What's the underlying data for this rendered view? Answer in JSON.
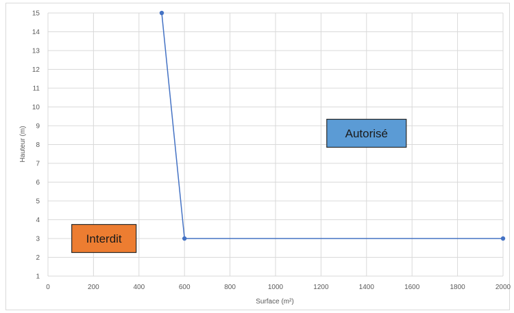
{
  "chart_data": {
    "type": "line",
    "xlabel": "Surface (m²)",
    "ylabel": "Hauteur (m)",
    "xlim": [
      0,
      2000
    ],
    "ylim": [
      1,
      15
    ],
    "x_ticks": [
      "0",
      "200",
      "400",
      "600",
      "800",
      "1000",
      "1200",
      "1400",
      "1600",
      "1800",
      "2000"
    ],
    "y_ticks": [
      "1",
      "2",
      "3",
      "4",
      "5",
      "6",
      "7",
      "8",
      "9",
      "10",
      "11",
      "12",
      "13",
      "14",
      "15"
    ],
    "grid": true,
    "series": [
      {
        "x": [
          500,
          600,
          2000
        ],
        "y": [
          15,
          3,
          3
        ],
        "color": "#4472c4"
      }
    ],
    "annotations": [
      {
        "text": "Autorisé",
        "x": 1400,
        "y": 8.6,
        "color": "#5b9bd5"
      },
      {
        "text": "Interdit",
        "x": 246,
        "y": 3,
        "color": "#ed7d31"
      }
    ]
  }
}
